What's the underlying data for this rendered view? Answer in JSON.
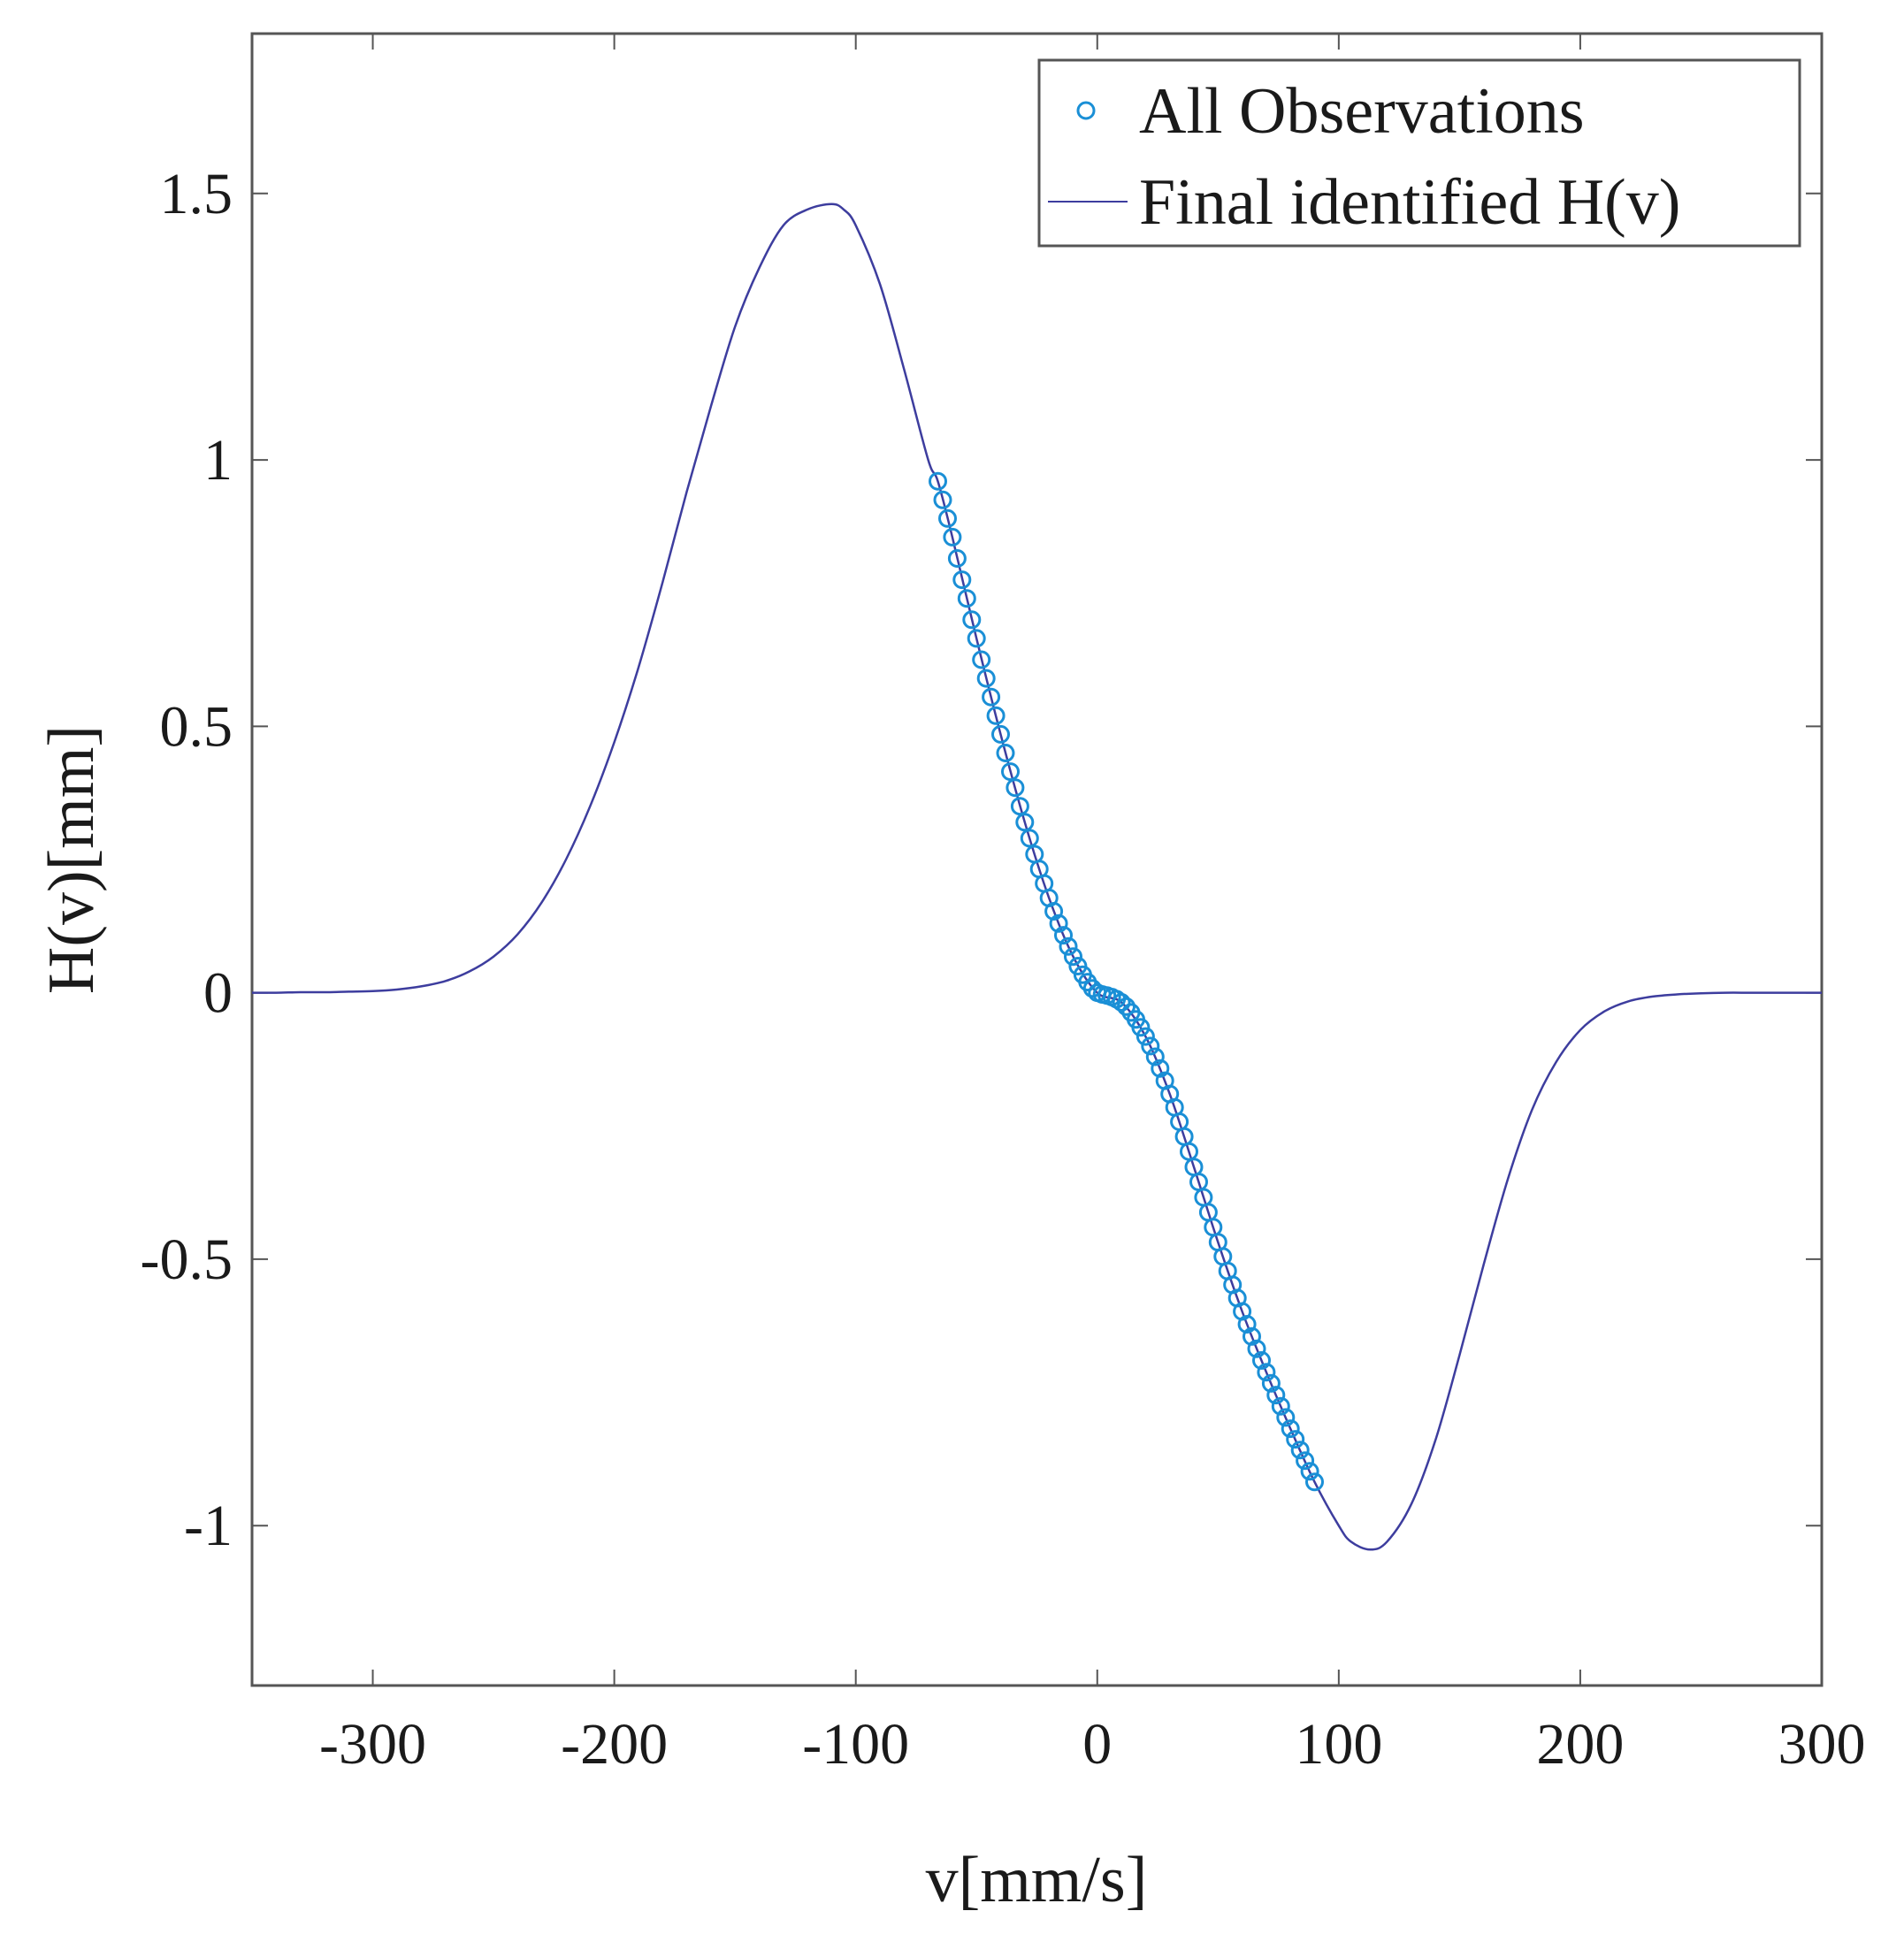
{
  "chart_data": {
    "type": "line",
    "title": "",
    "xlabel": "v[mm/s]",
    "ylabel": "H(v)[mm]",
    "xlim": [
      -350,
      300
    ],
    "ylim": [
      -1.3,
      1.8
    ],
    "x_ticks": [
      -300,
      -200,
      -100,
      0,
      100,
      200,
      300
    ],
    "x_tick_labels": [
      "-300",
      "-200",
      "-100",
      "0",
      "100",
      "200",
      "300"
    ],
    "y_ticks": [
      -1,
      -0.5,
      0,
      0.5,
      1,
      1.5
    ],
    "y_tick_labels": [
      "-1",
      "-0.5",
      "0",
      "0.5",
      "1",
      "1.5"
    ],
    "grid": false,
    "legend_position": "top-right",
    "series": [
      {
        "name": "All Observations",
        "kind": "scatter",
        "marker": "open-circle",
        "color": "#1a8fd6",
        "x": [
          -66,
          -64,
          -62,
          -60,
          -58,
          -56,
          -54,
          -52,
          -50,
          -48,
          -46,
          -44,
          -42,
          -40,
          -38,
          -36,
          -34,
          -32,
          -30,
          -28,
          -26,
          -24,
          -22,
          -20,
          -18,
          -16,
          -14,
          -12,
          -10,
          -8,
          -6,
          -4,
          -2,
          0,
          2,
          4,
          6,
          8,
          10,
          12,
          14,
          16,
          18,
          20,
          22,
          24,
          26,
          28,
          30,
          32,
          34,
          36,
          38,
          40,
          42,
          44,
          46,
          48,
          50,
          52,
          54,
          56,
          58,
          60,
          62,
          64,
          66,
          68,
          70,
          72,
          74,
          76,
          78,
          80,
          82,
          84,
          86,
          88,
          90
        ],
        "y": [
          0.96,
          0.925,
          0.89,
          0.855,
          0.815,
          0.775,
          0.74,
          0.7,
          0.665,
          0.625,
          0.59,
          0.555,
          0.52,
          0.485,
          0.45,
          0.415,
          0.385,
          0.35,
          0.32,
          0.29,
          0.26,
          0.232,
          0.205,
          0.178,
          0.153,
          0.13,
          0.108,
          0.087,
          0.068,
          0.05,
          0.034,
          0.02,
          0.008,
          0.0,
          -0.003,
          -0.005,
          -0.008,
          -0.012,
          -0.018,
          -0.026,
          -0.037,
          -0.05,
          -0.065,
          -0.082,
          -0.1,
          -0.12,
          -0.142,
          -0.165,
          -0.19,
          -0.215,
          -0.242,
          -0.27,
          -0.298,
          -0.327,
          -0.355,
          -0.384,
          -0.412,
          -0.44,
          -0.468,
          -0.495,
          -0.522,
          -0.548,
          -0.573,
          -0.598,
          -0.622,
          -0.645,
          -0.668,
          -0.69,
          -0.712,
          -0.733,
          -0.755,
          -0.776,
          -0.797,
          -0.818,
          -0.838,
          -0.858,
          -0.878,
          -0.898,
          -0.918
        ]
      },
      {
        "name": "Final identified H(v)",
        "kind": "line",
        "color": "#3d3d9e",
        "x": [
          -350,
          -340,
          -330,
          -320,
          -310,
          -300,
          -290,
          -280,
          -270,
          -260,
          -250,
          -240,
          -230,
          -220,
          -210,
          -200,
          -190,
          -180,
          -170,
          -160,
          -150,
          -140,
          -130,
          -120,
          -110,
          -105,
          -100,
          -90,
          -80,
          -70,
          -66,
          -60,
          -50,
          -40,
          -30,
          -20,
          -10,
          0,
          10,
          20,
          30,
          40,
          50,
          60,
          70,
          80,
          90,
          100,
          105,
          113,
          120,
          130,
          140,
          150,
          160,
          170,
          180,
          190,
          200,
          210,
          220,
          230,
          240,
          250,
          260,
          270,
          280,
          290,
          300
        ],
        "y": [
          0.0,
          0.0,
          0.001,
          0.001,
          0.002,
          0.003,
          0.006,
          0.012,
          0.022,
          0.04,
          0.068,
          0.11,
          0.17,
          0.25,
          0.35,
          0.47,
          0.61,
          0.77,
          0.94,
          1.1,
          1.25,
          1.36,
          1.44,
          1.47,
          1.48,
          1.47,
          1.44,
          1.33,
          1.17,
          1.0,
          0.96,
          0.855,
          0.665,
          0.485,
          0.32,
          0.178,
          0.068,
          0.0,
          -0.018,
          -0.082,
          -0.19,
          -0.327,
          -0.468,
          -0.598,
          -0.712,
          -0.818,
          -0.918,
          -1.0,
          -1.03,
          -1.045,
          -1.03,
          -0.96,
          -0.84,
          -0.68,
          -0.51,
          -0.35,
          -0.22,
          -0.13,
          -0.07,
          -0.035,
          -0.016,
          -0.007,
          -0.003,
          -0.001,
          0.0,
          0.0,
          0.0,
          0.0,
          0.0
        ]
      }
    ]
  }
}
